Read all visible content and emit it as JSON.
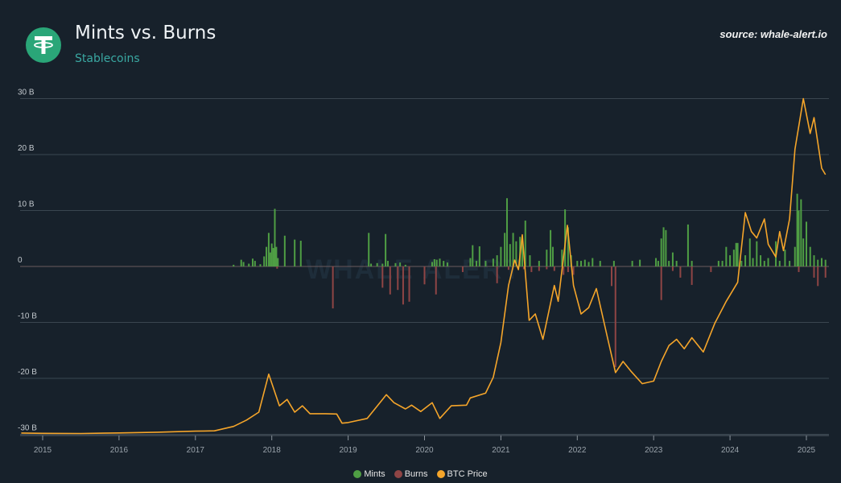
{
  "header": {
    "title": "Mints vs. Burns",
    "subtitle": "Stablecoins",
    "source": "source: whale-alert.io",
    "logo_icon": "tether-icon"
  },
  "watermark": "WHALE ALERT",
  "colors": {
    "background": "#17212b",
    "mints": "#4f9e44",
    "burns": "#8f4545",
    "btc": "#f5a52a",
    "grid": "#3a4650"
  },
  "chart_data": {
    "type": "bar+line",
    "title": "Mints vs. Burns",
    "subtitle": "Stablecoins",
    "x_ticks": [
      "2015",
      "2016",
      "2017",
      "2018",
      "2019",
      "2020",
      "2021",
      "2022",
      "2023",
      "2024",
      "2025"
    ],
    "y_ticks": [
      "30 B",
      "20 B",
      "10 B",
      "0",
      "-10 B",
      "-20 B",
      "-30 B"
    ],
    "ylim": [
      -30,
      30
    ],
    "xlim": [
      2014.7,
      2025.3
    ],
    "grid": true,
    "legend_position": "bottom",
    "legend": [
      "Mints",
      "Burns",
      "BTC Price"
    ],
    "series": [
      {
        "name": "Mints",
        "type": "bar",
        "unit": "B",
        "points": [
          [
            2017.5,
            0.3
          ],
          [
            2017.6,
            1.2
          ],
          [
            2017.63,
            0.8
          ],
          [
            2017.7,
            0.5
          ],
          [
            2017.75,
            1.4
          ],
          [
            2017.78,
            1.0
          ],
          [
            2017.85,
            0.4
          ],
          [
            2017.9,
            1.8
          ],
          [
            2017.93,
            3.5
          ],
          [
            2017.96,
            6.0
          ],
          [
            2017.98,
            2.5
          ],
          [
            2018.0,
            4.1
          ],
          [
            2018.02,
            3.3
          ],
          [
            2018.04,
            10.3
          ],
          [
            2018.06,
            3.5
          ],
          [
            2018.08,
            1.5
          ],
          [
            2018.17,
            5.5
          ],
          [
            2018.3,
            4.8
          ],
          [
            2018.38,
            4.6
          ],
          [
            2019.27,
            6.0
          ],
          [
            2019.3,
            0.5
          ],
          [
            2019.38,
            0.6
          ],
          [
            2019.45,
            0.5
          ],
          [
            2019.49,
            5.8
          ],
          [
            2019.52,
            1.0
          ],
          [
            2019.62,
            0.6
          ],
          [
            2019.68,
            0.7
          ],
          [
            2019.75,
            0.3
          ],
          [
            2020.1,
            0.8
          ],
          [
            2020.13,
            1.3
          ],
          [
            2020.16,
            1.2
          ],
          [
            2020.2,
            1.4
          ],
          [
            2020.25,
            1.0
          ],
          [
            2020.3,
            0.7
          ],
          [
            2020.6,
            1.5
          ],
          [
            2020.63,
            3.8
          ],
          [
            2020.68,
            1.0
          ],
          [
            2020.72,
            3.6
          ],
          [
            2020.8,
            1.0
          ],
          [
            2020.9,
            1.4
          ],
          [
            2020.95,
            2.0
          ],
          [
            2021.0,
            3.5
          ],
          [
            2021.05,
            6.0
          ],
          [
            2021.08,
            12.2
          ],
          [
            2021.12,
            4.0
          ],
          [
            2021.16,
            6.0
          ],
          [
            2021.2,
            4.5
          ],
          [
            2021.25,
            5.3
          ],
          [
            2021.28,
            5.0
          ],
          [
            2021.32,
            8.2
          ],
          [
            2021.38,
            2.0
          ],
          [
            2021.5,
            1.0
          ],
          [
            2021.6,
            3.0
          ],
          [
            2021.65,
            6.5
          ],
          [
            2021.68,
            3.5
          ],
          [
            2021.8,
            3.0
          ],
          [
            2021.84,
            10.2
          ],
          [
            2021.88,
            7.0
          ],
          [
            2021.92,
            2.0
          ],
          [
            2022.0,
            1.0
          ],
          [
            2022.05,
            1.0
          ],
          [
            2022.1,
            1.2
          ],
          [
            2022.15,
            0.8
          ],
          [
            2022.2,
            1.5
          ],
          [
            2022.3,
            1.0
          ],
          [
            2022.48,
            1.0
          ],
          [
            2022.72,
            1.0
          ],
          [
            2022.82,
            1.2
          ],
          [
            2023.03,
            1.5
          ],
          [
            2023.06,
            1.0
          ],
          [
            2023.1,
            5.0
          ],
          [
            2023.13,
            7.0
          ],
          [
            2023.16,
            6.5
          ],
          [
            2023.2,
            1.0
          ],
          [
            2023.25,
            2.5
          ],
          [
            2023.3,
            1.0
          ],
          [
            2023.45,
            7.5
          ],
          [
            2023.5,
            1.0
          ],
          [
            2023.85,
            1.0
          ],
          [
            2023.9,
            1.0
          ],
          [
            2023.95,
            3.5
          ],
          [
            2024.0,
            2.0
          ],
          [
            2024.05,
            3.0
          ],
          [
            2024.08,
            4.2
          ],
          [
            2024.1,
            4.2
          ],
          [
            2024.15,
            1.0
          ],
          [
            2024.2,
            2.0
          ],
          [
            2024.26,
            5.0
          ],
          [
            2024.3,
            1.5
          ],
          [
            2024.35,
            4.5
          ],
          [
            2024.4,
            2.0
          ],
          [
            2024.45,
            1.0
          ],
          [
            2024.5,
            1.5
          ],
          [
            2024.6,
            4.5
          ],
          [
            2024.65,
            1.0
          ],
          [
            2024.72,
            3.0
          ],
          [
            2024.78,
            1.0
          ],
          [
            2024.85,
            3.5
          ],
          [
            2024.88,
            13.0
          ],
          [
            2024.9,
            10.0
          ],
          [
            2024.93,
            12.0
          ],
          [
            2024.96,
            5.0
          ],
          [
            2025.0,
            8.0
          ],
          [
            2025.05,
            3.5
          ],
          [
            2025.1,
            2.0
          ],
          [
            2025.15,
            1.2
          ],
          [
            2025.2,
            1.5
          ],
          [
            2025.25,
            1.2
          ]
        ]
      },
      {
        "name": "Burns",
        "type": "bar",
        "unit": "B",
        "points": [
          [
            2018.07,
            -0.4
          ],
          [
            2018.8,
            -7.5
          ],
          [
            2019.45,
            -3.8
          ],
          [
            2019.55,
            -5.0
          ],
          [
            2019.65,
            -4.2
          ],
          [
            2019.72,
            -6.8
          ],
          [
            2019.8,
            -6.3
          ],
          [
            2020.0,
            -3.2
          ],
          [
            2020.15,
            -5.0
          ],
          [
            2020.5,
            -1.0
          ],
          [
            2020.95,
            -3.0
          ],
          [
            2021.1,
            -0.6
          ],
          [
            2021.3,
            -0.5
          ],
          [
            2021.4,
            -1.0
          ],
          [
            2021.5,
            -0.8
          ],
          [
            2021.6,
            -0.5
          ],
          [
            2021.7,
            -0.8
          ],
          [
            2021.82,
            -1.5
          ],
          [
            2021.88,
            -1.0
          ],
          [
            2021.95,
            -1.5
          ],
          [
            2022.45,
            -3.5
          ],
          [
            2022.5,
            -18.0
          ],
          [
            2023.1,
            -6.0
          ],
          [
            2023.25,
            -0.8
          ],
          [
            2023.35,
            -2.0
          ],
          [
            2023.5,
            -3.3
          ],
          [
            2023.75,
            -1.0
          ],
          [
            2024.9,
            -1.0
          ],
          [
            2025.1,
            -2.0
          ],
          [
            2025.15,
            -3.5
          ],
          [
            2025.25,
            -2.0
          ]
        ]
      },
      {
        "name": "BTC Price",
        "type": "line",
        "unit": "USD",
        "scale": [
          0,
          106000
        ],
        "points": [
          [
            2014.72,
            400
          ],
          [
            2015.0,
            300
          ],
          [
            2015.5,
            260
          ],
          [
            2016.0,
            430
          ],
          [
            2016.5,
            650
          ],
          [
            2017.0,
            1000
          ],
          [
            2017.25,
            1100
          ],
          [
            2017.5,
            2500
          ],
          [
            2017.67,
            4500
          ],
          [
            2017.83,
            7000
          ],
          [
            2017.96,
            19000
          ],
          [
            2018.1,
            9000
          ],
          [
            2018.2,
            11000
          ],
          [
            2018.3,
            7000
          ],
          [
            2018.4,
            9000
          ],
          [
            2018.5,
            6500
          ],
          [
            2018.7,
            6500
          ],
          [
            2018.85,
            6400
          ],
          [
            2018.92,
            3500
          ],
          [
            2019.0,
            3700
          ],
          [
            2019.25,
            5000
          ],
          [
            2019.45,
            11000
          ],
          [
            2019.5,
            12500
          ],
          [
            2019.6,
            10000
          ],
          [
            2019.75,
            8000
          ],
          [
            2019.83,
            9200
          ],
          [
            2019.95,
            7200
          ],
          [
            2020.1,
            10000
          ],
          [
            2020.2,
            5000
          ],
          [
            2020.35,
            9000
          ],
          [
            2020.55,
            9200
          ],
          [
            2020.6,
            11500
          ],
          [
            2020.8,
            13000
          ],
          [
            2020.9,
            18000
          ],
          [
            2021.0,
            29000
          ],
          [
            2021.1,
            47000
          ],
          [
            2021.18,
            55000
          ],
          [
            2021.23,
            52000
          ],
          [
            2021.28,
            63000
          ],
          [
            2021.37,
            36000
          ],
          [
            2021.45,
            38000
          ],
          [
            2021.55,
            30000
          ],
          [
            2021.7,
            47000
          ],
          [
            2021.75,
            42000
          ],
          [
            2021.87,
            66000
          ],
          [
            2021.95,
            47000
          ],
          [
            2022.05,
            38000
          ],
          [
            2022.15,
            40000
          ],
          [
            2022.25,
            46000
          ],
          [
            2022.4,
            30000
          ],
          [
            2022.5,
            19500
          ],
          [
            2022.6,
            23000
          ],
          [
            2022.7,
            20000
          ],
          [
            2022.85,
            16000
          ],
          [
            2023.0,
            16800
          ],
          [
            2023.1,
            23000
          ],
          [
            2023.2,
            28000
          ],
          [
            2023.3,
            30000
          ],
          [
            2023.4,
            27000
          ],
          [
            2023.5,
            30500
          ],
          [
            2023.65,
            26000
          ],
          [
            2023.8,
            35000
          ],
          [
            2023.95,
            42000
          ],
          [
            2024.1,
            48000
          ],
          [
            2024.2,
            70000
          ],
          [
            2024.28,
            64000
          ],
          [
            2024.35,
            62000
          ],
          [
            2024.45,
            68000
          ],
          [
            2024.5,
            60000
          ],
          [
            2024.6,
            56000
          ],
          [
            2024.65,
            64000
          ],
          [
            2024.7,
            58000
          ],
          [
            2024.78,
            68000
          ],
          [
            2024.85,
            90000
          ],
          [
            2024.96,
            106000
          ],
          [
            2025.05,
            95000
          ],
          [
            2025.1,
            100000
          ],
          [
            2025.2,
            84000
          ],
          [
            2025.25,
            82000
          ]
        ]
      }
    ]
  }
}
